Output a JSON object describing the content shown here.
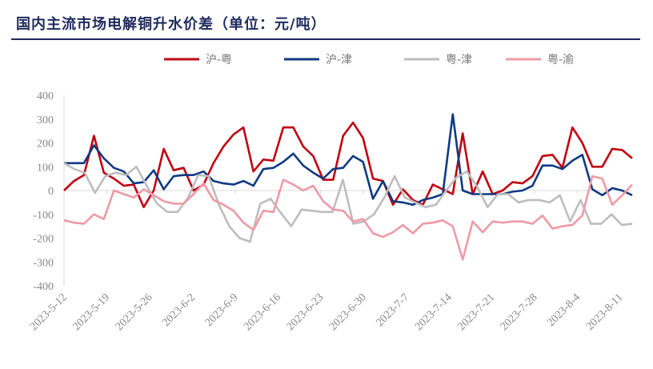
{
  "chart_data": {
    "type": "line",
    "title": "国内主流市场电解铜升水价差（单位：元/吨）",
    "ylim": [
      -400,
      400
    ],
    "yticks": [
      "400",
      "300",
      "200",
      "100",
      "0",
      "-100",
      "-200",
      "-300",
      "-400"
    ],
    "xticks": [
      "2023-5-12",
      "2023-5-19",
      "2023-5-26",
      "2023-6-2",
      "2023-6-9",
      "2023-6-16",
      "2023-6-23",
      "2023-6-30",
      "2023-7-7",
      "2023-7-14",
      "2023-7-21",
      "2023-7-28",
      "2023-8-4",
      "2023-8-11"
    ],
    "x_start": "2023-05-12",
    "legend_position": "top-center",
    "grid": false,
    "series": [
      {
        "name": "沪-粤",
        "color": "#c00010",
        "values": [
          0,
          40,
          65,
          230,
          75,
          50,
          20,
          25,
          -70,
          0,
          175,
          85,
          95,
          0,
          25,
          115,
          185,
          235,
          265,
          80,
          130,
          125,
          265,
          265,
          185,
          145,
          45,
          45,
          230,
          285,
          220,
          50,
          40,
          -60,
          5,
          -40,
          -60,
          25,
          5,
          -15,
          240,
          -15,
          80,
          -15,
          0,
          35,
          30,
          60,
          145,
          150,
          95,
          265,
          200,
          100,
          100,
          175,
          170,
          135
        ]
      },
      {
        "name": "沪-津",
        "color": "#0f3a80",
        "values": [
          115,
          115,
          115,
          190,
          135,
          95,
          80,
          30,
          35,
          85,
          5,
          60,
          65,
          65,
          80,
          40,
          30,
          25,
          40,
          20,
          90,
          95,
          120,
          155,
          105,
          75,
          50,
          90,
          95,
          145,
          120,
          -35,
          40,
          -45,
          -50,
          -60,
          -40,
          -30,
          -15,
          320,
          0,
          -15,
          -15,
          -15,
          -15,
          -5,
          0,
          20,
          105,
          105,
          90,
          125,
          150,
          5,
          -20,
          10,
          0,
          -20
        ]
      },
      {
        "name": "粤-津",
        "color": "#bdbdbd",
        "values": [
          115,
          90,
          75,
          -10,
          60,
          75,
          65,
          100,
          20,
          -55,
          -90,
          -90,
          -30,
          65,
          60,
          -60,
          -150,
          -200,
          -215,
          -55,
          -35,
          -95,
          -150,
          -80,
          -85,
          -90,
          -90,
          45,
          -140,
          -130,
          -100,
          -30,
          60,
          -30,
          -50,
          -70,
          -60,
          0,
          55,
          80,
          15,
          -70,
          -15,
          -15,
          -50,
          -40,
          -40,
          -50,
          -20,
          -130,
          -40,
          -140,
          -140,
          -100,
          -145,
          -140
        ]
      },
      {
        "name": "粤-渝",
        "color": "#ee9aa5",
        "values": [
          -125,
          -135,
          -140,
          -100,
          -120,
          0,
          -15,
          -30,
          5,
          -20,
          -45,
          -55,
          -55,
          -15,
          30,
          -40,
          -60,
          -85,
          -135,
          -165,
          -85,
          -90,
          45,
          25,
          0,
          20,
          -45,
          -80,
          -85,
          -130,
          -120,
          -180,
          -195,
          -175,
          -145,
          -180,
          -140,
          -135,
          -125,
          -150,
          -290,
          -130,
          -175,
          -130,
          -135,
          -130,
          -130,
          -140,
          -105,
          -160,
          -150,
          -145,
          -105,
          60,
          50,
          -60,
          -20,
          25
        ]
      }
    ]
  }
}
